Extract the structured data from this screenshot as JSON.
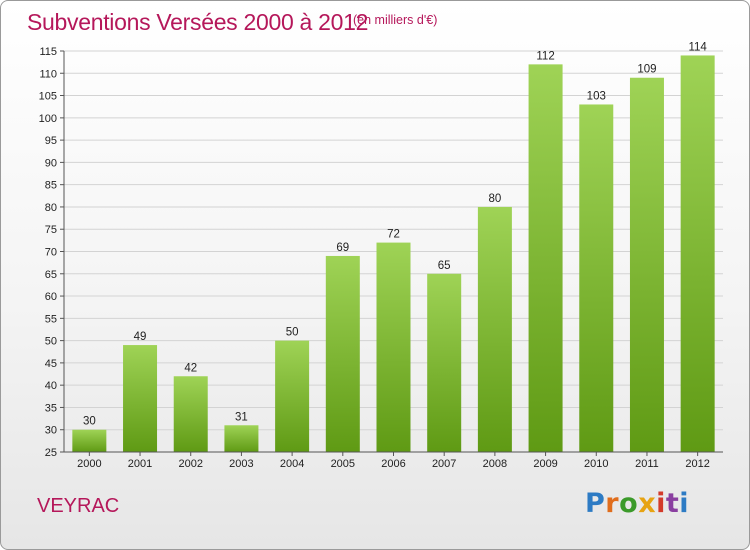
{
  "title": "Subventions Versées 2000 à 2012",
  "unit_note": "(en milliers d'€)",
  "commune": "VEYRAC",
  "logo": {
    "text": "Proxiti",
    "letters": [
      "P",
      "r",
      "o",
      "x",
      "i",
      "t",
      "i"
    ]
  },
  "colors": {
    "title": "#b5175a",
    "bar_light": "#9fd356",
    "bar_dark": "#5f9a14",
    "grid": "#d3d3d3"
  },
  "chart_data": {
    "type": "bar",
    "categories": [
      "2000",
      "2001",
      "2002",
      "2003",
      "2004",
      "2005",
      "2006",
      "2007",
      "2008",
      "2009",
      "2010",
      "2011",
      "2012"
    ],
    "values": [
      30,
      49,
      42,
      31,
      50,
      69,
      72,
      65,
      80,
      112,
      103,
      109,
      114
    ],
    "title": "Subventions Versées 2000 à 2012",
    "subtitle": "(en milliers d'€)",
    "ylim": [
      25,
      115
    ],
    "yticks": [
      25,
      30,
      35,
      40,
      45,
      50,
      55,
      60,
      65,
      70,
      75,
      80,
      85,
      90,
      95,
      100,
      105,
      110,
      115
    ],
    "grid": true,
    "legend": "none"
  }
}
